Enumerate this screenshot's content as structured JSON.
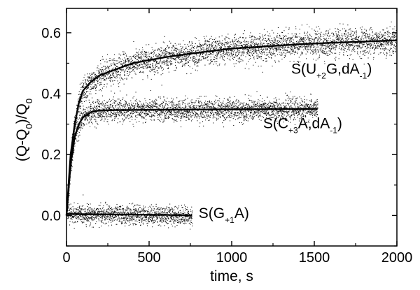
{
  "chart_data": {
    "type": "scatter",
    "title": "",
    "xlabel": "time, s",
    "ylabel": "(Q-Q0)/Q0",
    "ylabel_parts": [
      {
        "text": "(Q-Q",
        "sub": false
      },
      {
        "text": "0",
        "sub": true
      },
      {
        "text": ")/Q",
        "sub": false
      },
      {
        "text": "0",
        "sub": true
      }
    ],
    "xlim": [
      0,
      2000
    ],
    "ylim": [
      -0.1,
      0.68
    ],
    "xticks": [
      0,
      500,
      1000,
      1500,
      2000
    ],
    "xtick_labels": [
      "0",
      "500",
      "1000",
      "1500",
      "2000"
    ],
    "yticks": [
      0.0,
      0.2,
      0.4,
      0.6
    ],
    "ytick_labels": [
      "0.0",
      "0.2",
      "0.4",
      "0.6"
    ],
    "grid": false,
    "legend": "none",
    "series": [
      {
        "name": "S(U+2G,dA-1)",
        "label_parts": [
          {
            "text": "S(U",
            "sub": false
          },
          {
            "text": "+2",
            "sub": true
          },
          {
            "text": "G,dA",
            "sub": false
          },
          {
            "text": "-1",
            "sub": true
          },
          {
            "text": ")",
            "sub": false
          }
        ],
        "label_anchor": {
          "x": 1360,
          "y": 0.465
        },
        "x": [
          0,
          25,
          50,
          75,
          100,
          150,
          200,
          300,
          400,
          500,
          600,
          800,
          1000,
          1200,
          1400,
          1600,
          1800,
          2000
        ],
        "y": [
          0.0,
          0.2,
          0.3,
          0.37,
          0.41,
          0.44,
          0.46,
          0.48,
          0.5,
          0.51,
          0.52,
          0.535,
          0.548,
          0.555,
          0.562,
          0.567,
          0.571,
          0.575
        ],
        "x_range": [
          0,
          2000
        ],
        "noise": 0.022
      },
      {
        "name": "S(C+3A,dA-1)",
        "label_parts": [
          {
            "text": "S(C",
            "sub": false
          },
          {
            "text": "+3",
            "sub": true
          },
          {
            "text": "A,dA",
            "sub": false
          },
          {
            "text": "-1",
            "sub": true
          },
          {
            "text": ")",
            "sub": false
          }
        ],
        "label_anchor": {
          "x": 1190,
          "y": 0.287
        },
        "x": [
          0,
          25,
          50,
          75,
          100,
          150,
          200,
          300,
          500,
          800,
          1200,
          1500
        ],
        "y": [
          0.0,
          0.17,
          0.26,
          0.3,
          0.322,
          0.34,
          0.345,
          0.346,
          0.347,
          0.348,
          0.349,
          0.35
        ],
        "x_range": [
          0,
          1520
        ],
        "noise": 0.018
      },
      {
        "name": "S(G+1A)",
        "label_parts": [
          {
            "text": "S(G",
            "sub": false
          },
          {
            "text": "+1",
            "sub": true
          },
          {
            "text": "A)",
            "sub": false
          }
        ],
        "label_anchor": {
          "x": 800,
          "y": -0.008
        },
        "x": [
          0,
          200,
          400,
          600,
          760
        ],
        "y": [
          0.005,
          0.004,
          0.003,
          0.002,
          0.0
        ],
        "x_range": [
          0,
          760
        ],
        "noise": 0.015
      }
    ]
  }
}
